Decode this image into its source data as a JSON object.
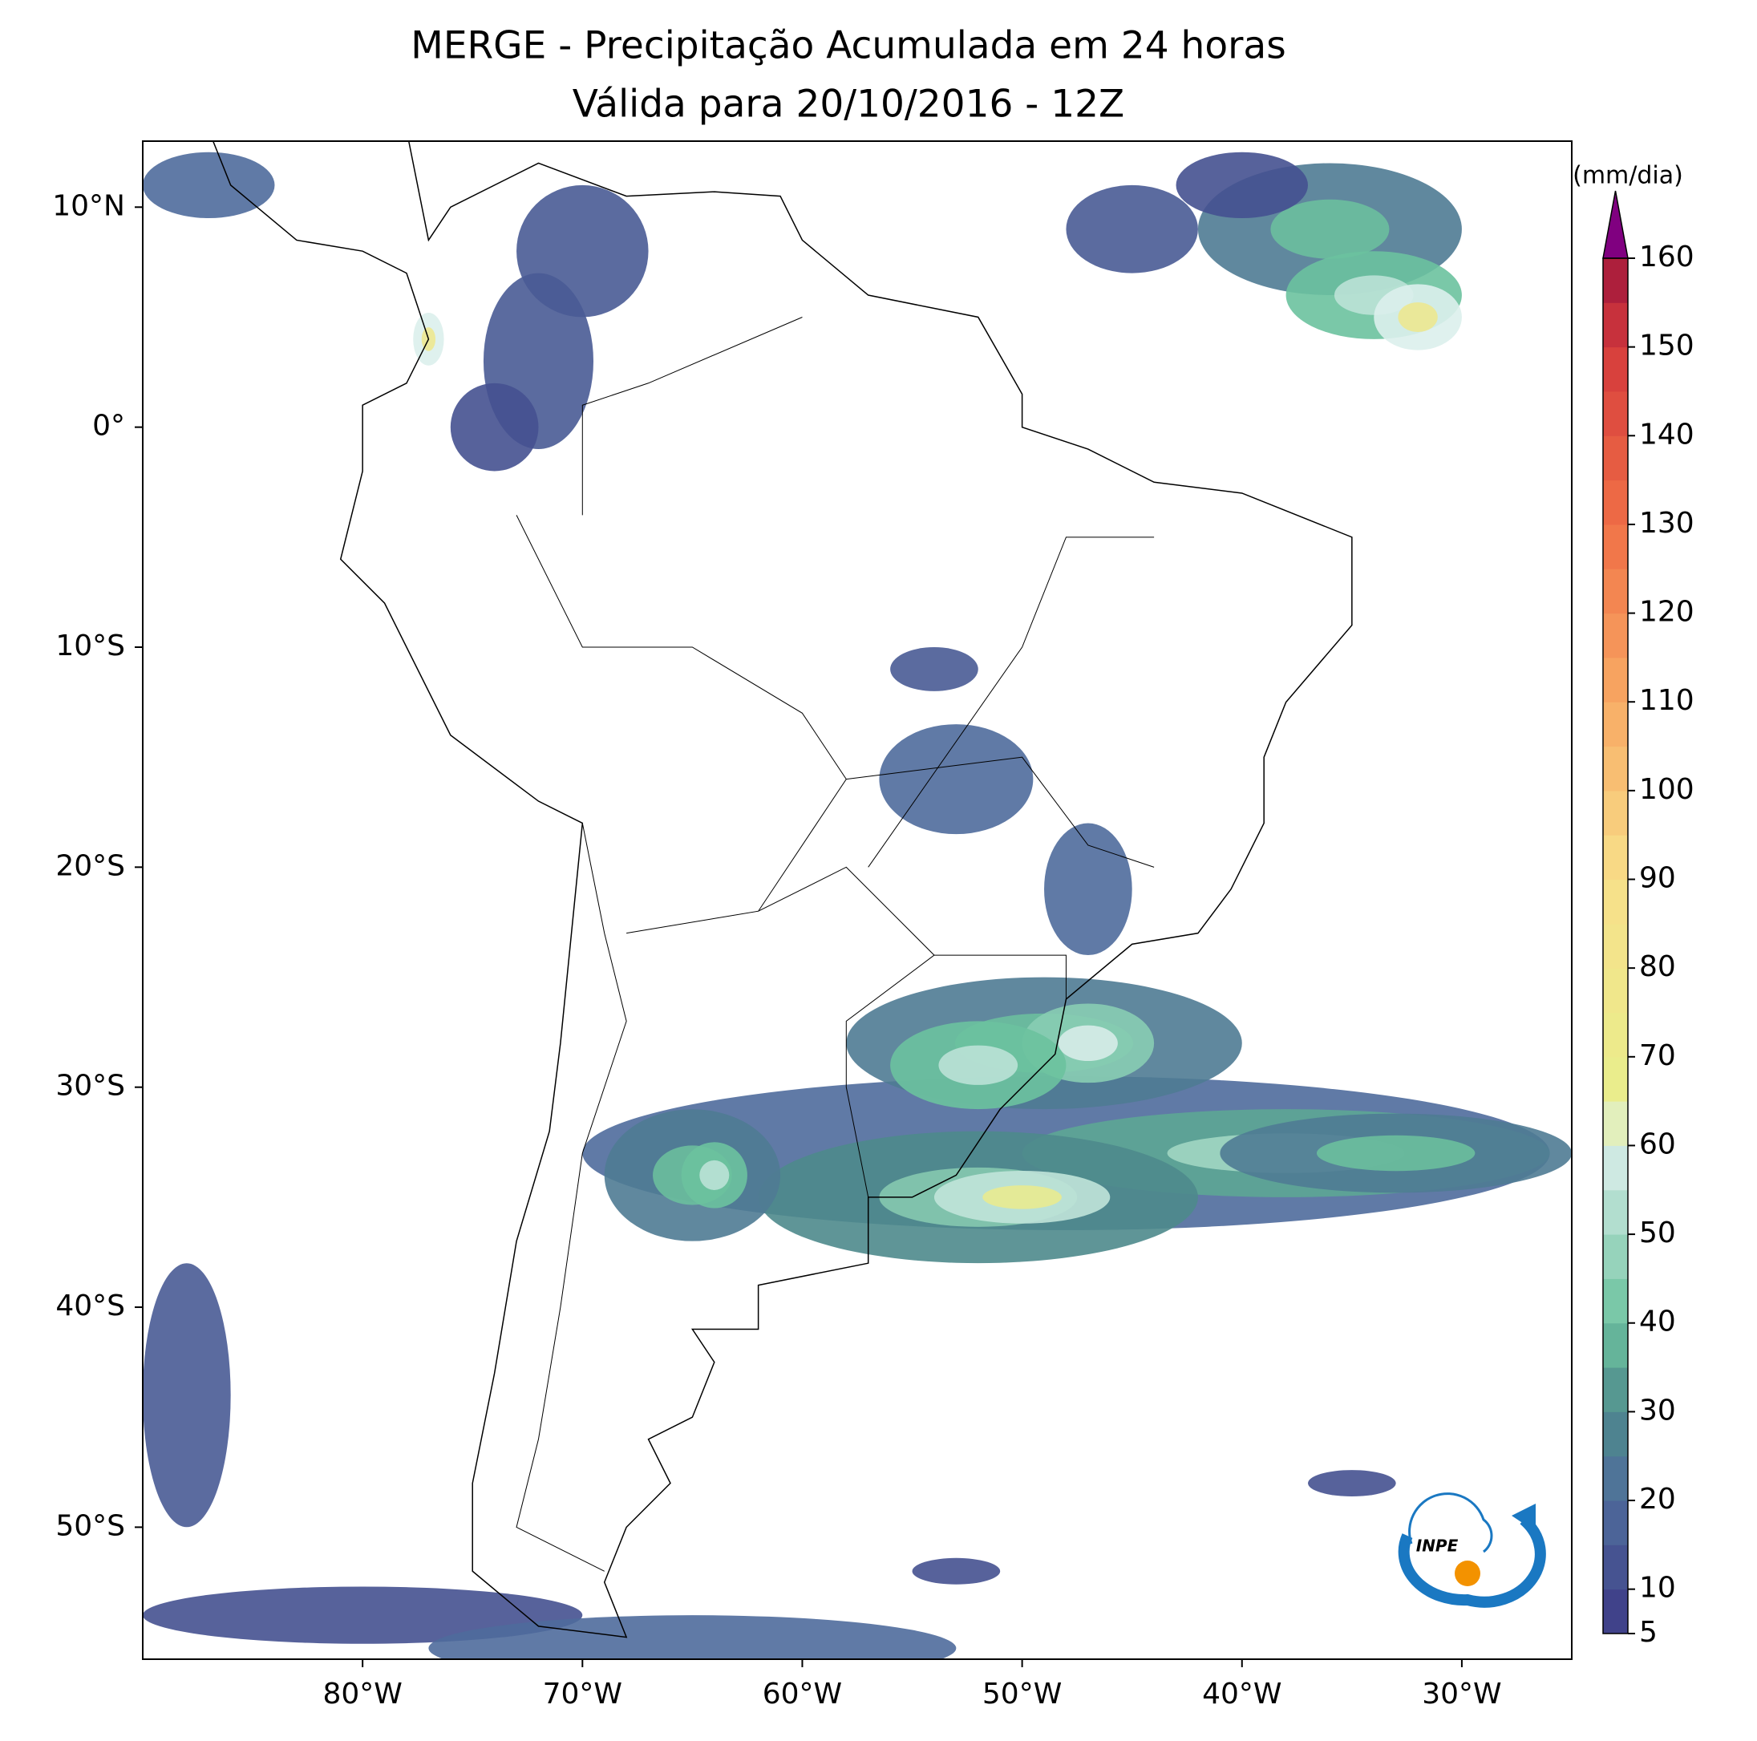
{
  "title": "MERGE - Precipitação Acumulada em 24 horas",
  "subtitle": "Válida para 20/10/2016 - 12Z",
  "map": {
    "xlim": [
      -90,
      -25
    ],
    "ylim": [
      -56,
      13
    ],
    "xticks": [
      {
        "value": -80,
        "label": "80°W"
      },
      {
        "value": -70,
        "label": "70°W"
      },
      {
        "value": -60,
        "label": "60°W"
      },
      {
        "value": -50,
        "label": "50°W"
      },
      {
        "value": -40,
        "label": "40°W"
      },
      {
        "value": -30,
        "label": "30°W"
      }
    ],
    "yticks": [
      {
        "value": 10,
        "label": "10°N"
      },
      {
        "value": 0,
        "label": "0°"
      },
      {
        "value": -10,
        "label": "10°S"
      },
      {
        "value": -20,
        "label": "20°S"
      },
      {
        "value": -30,
        "label": "30°S"
      },
      {
        "value": -40,
        "label": "40°S"
      },
      {
        "value": -50,
        "label": "50°S"
      }
    ]
  },
  "colorbar": {
    "unit": "(mm/dia)",
    "lim": [
      5,
      160
    ],
    "ticks": [
      5,
      10,
      20,
      30,
      40,
      50,
      60,
      70,
      80,
      90,
      100,
      110,
      120,
      130,
      140,
      150,
      160
    ],
    "step": 5,
    "anchors": [
      [
        5,
        "#3d3a86"
      ],
      [
        20,
        "#4f6c9c"
      ],
      [
        30,
        "#4e8a8c"
      ],
      [
        40,
        "#6cc29e"
      ],
      [
        60,
        "#dcefec"
      ],
      [
        65,
        "#e8ee8c"
      ],
      [
        90,
        "#f8e08a"
      ],
      [
        110,
        "#f8aa64"
      ],
      [
        130,
        "#f07046"
      ],
      [
        150,
        "#d43a3c"
      ],
      [
        160,
        "#a0163c"
      ]
    ],
    "extend_color": "#800080"
  },
  "logo": {
    "text": "INPE"
  }
}
